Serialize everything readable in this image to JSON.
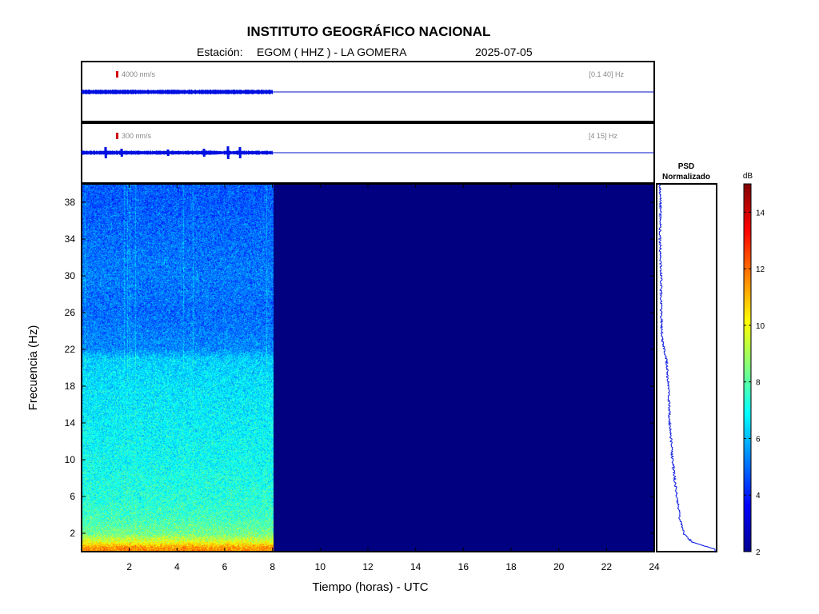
{
  "header": {
    "title": "INSTITUTO GEOGRÁFICO NACIONAL",
    "station_label": "Estación:",
    "station": "EGOM ( HHZ ) - LA GOMERA",
    "date": "2025-07-05"
  },
  "traces": [
    {
      "scale_label": "4000 nm/s",
      "band_label": "[0.1 40] Hz",
      "data_end_hour": 8
    },
    {
      "scale_label": "300 nm/s",
      "band_label": "[4 15] Hz",
      "data_end_hour": 8
    }
  ],
  "psd": {
    "title_line1": "PSD",
    "title_line2": "Normalizado"
  },
  "colorbar": {
    "unit": "dB",
    "min": 2,
    "max": 15,
    "tick_values": [
      2,
      4,
      6,
      8,
      10,
      12,
      14
    ],
    "tick_labels": [
      "2",
      "4",
      "6",
      "8",
      "10",
      "12",
      "14"
    ]
  },
  "chart_data": {
    "type": "heatmap",
    "title": "INSTITUTO GEOGRÁFICO NACIONAL",
    "xlabel": "Tiempo (horas) - UTC",
    "ylabel": "Frecuencia  (Hz)",
    "xlim": [
      0,
      24
    ],
    "ylim": [
      0,
      40
    ],
    "x_ticks": [
      2,
      4,
      6,
      8,
      10,
      12,
      14,
      16,
      18,
      20,
      22,
      24
    ],
    "x_tick_labels": [
      "2",
      "4",
      "6",
      "8",
      "10",
      "12",
      "14",
      "16",
      "18",
      "20",
      "22",
      "24"
    ],
    "y_ticks": [
      2,
      6,
      10,
      14,
      18,
      22,
      26,
      30,
      34,
      38
    ],
    "y_tick_labels": [
      "2",
      "6",
      "10",
      "14",
      "18",
      "22",
      "26",
      "30",
      "34",
      "38"
    ],
    "data_end_hour": 8,
    "background_db": 2,
    "spectrum_profile": [
      {
        "freq": 0.5,
        "db": 11.5
      },
      {
        "freq": 1,
        "db": 10
      },
      {
        "freq": 2,
        "db": 8.3
      },
      {
        "freq": 4,
        "db": 7.6
      },
      {
        "freq": 6,
        "db": 7.3
      },
      {
        "freq": 10,
        "db": 7.0
      },
      {
        "freq": 14,
        "db": 6.8
      },
      {
        "freq": 18,
        "db": 6.6
      },
      {
        "freq": 21,
        "db": 6.3
      },
      {
        "freq": 22,
        "db": 5.4
      },
      {
        "freq": 26,
        "db": 5.0
      },
      {
        "freq": 30,
        "db": 5.2
      },
      {
        "freq": 34,
        "db": 5.0
      },
      {
        "freq": 38,
        "db": 4.8
      },
      {
        "freq": 40,
        "db": 4.8
      }
    ],
    "psd_profile": [
      {
        "freq": 0.3,
        "value": 1.0
      },
      {
        "freq": 1,
        "value": 0.6
      },
      {
        "freq": 2,
        "value": 0.45
      },
      {
        "freq": 4,
        "value": 0.37
      },
      {
        "freq": 6,
        "value": 0.33
      },
      {
        "freq": 10,
        "value": 0.25
      },
      {
        "freq": 14,
        "value": 0.2
      },
      {
        "freq": 18,
        "value": 0.18
      },
      {
        "freq": 21,
        "value": 0.14
      },
      {
        "freq": 23,
        "value": 0.07
      },
      {
        "freq": 26,
        "value": 0.05
      },
      {
        "freq": 30,
        "value": 0.05
      },
      {
        "freq": 34,
        "value": 0.03
      },
      {
        "freq": 38,
        "value": 0.04
      },
      {
        "freq": 40,
        "value": 0.03
      }
    ]
  }
}
